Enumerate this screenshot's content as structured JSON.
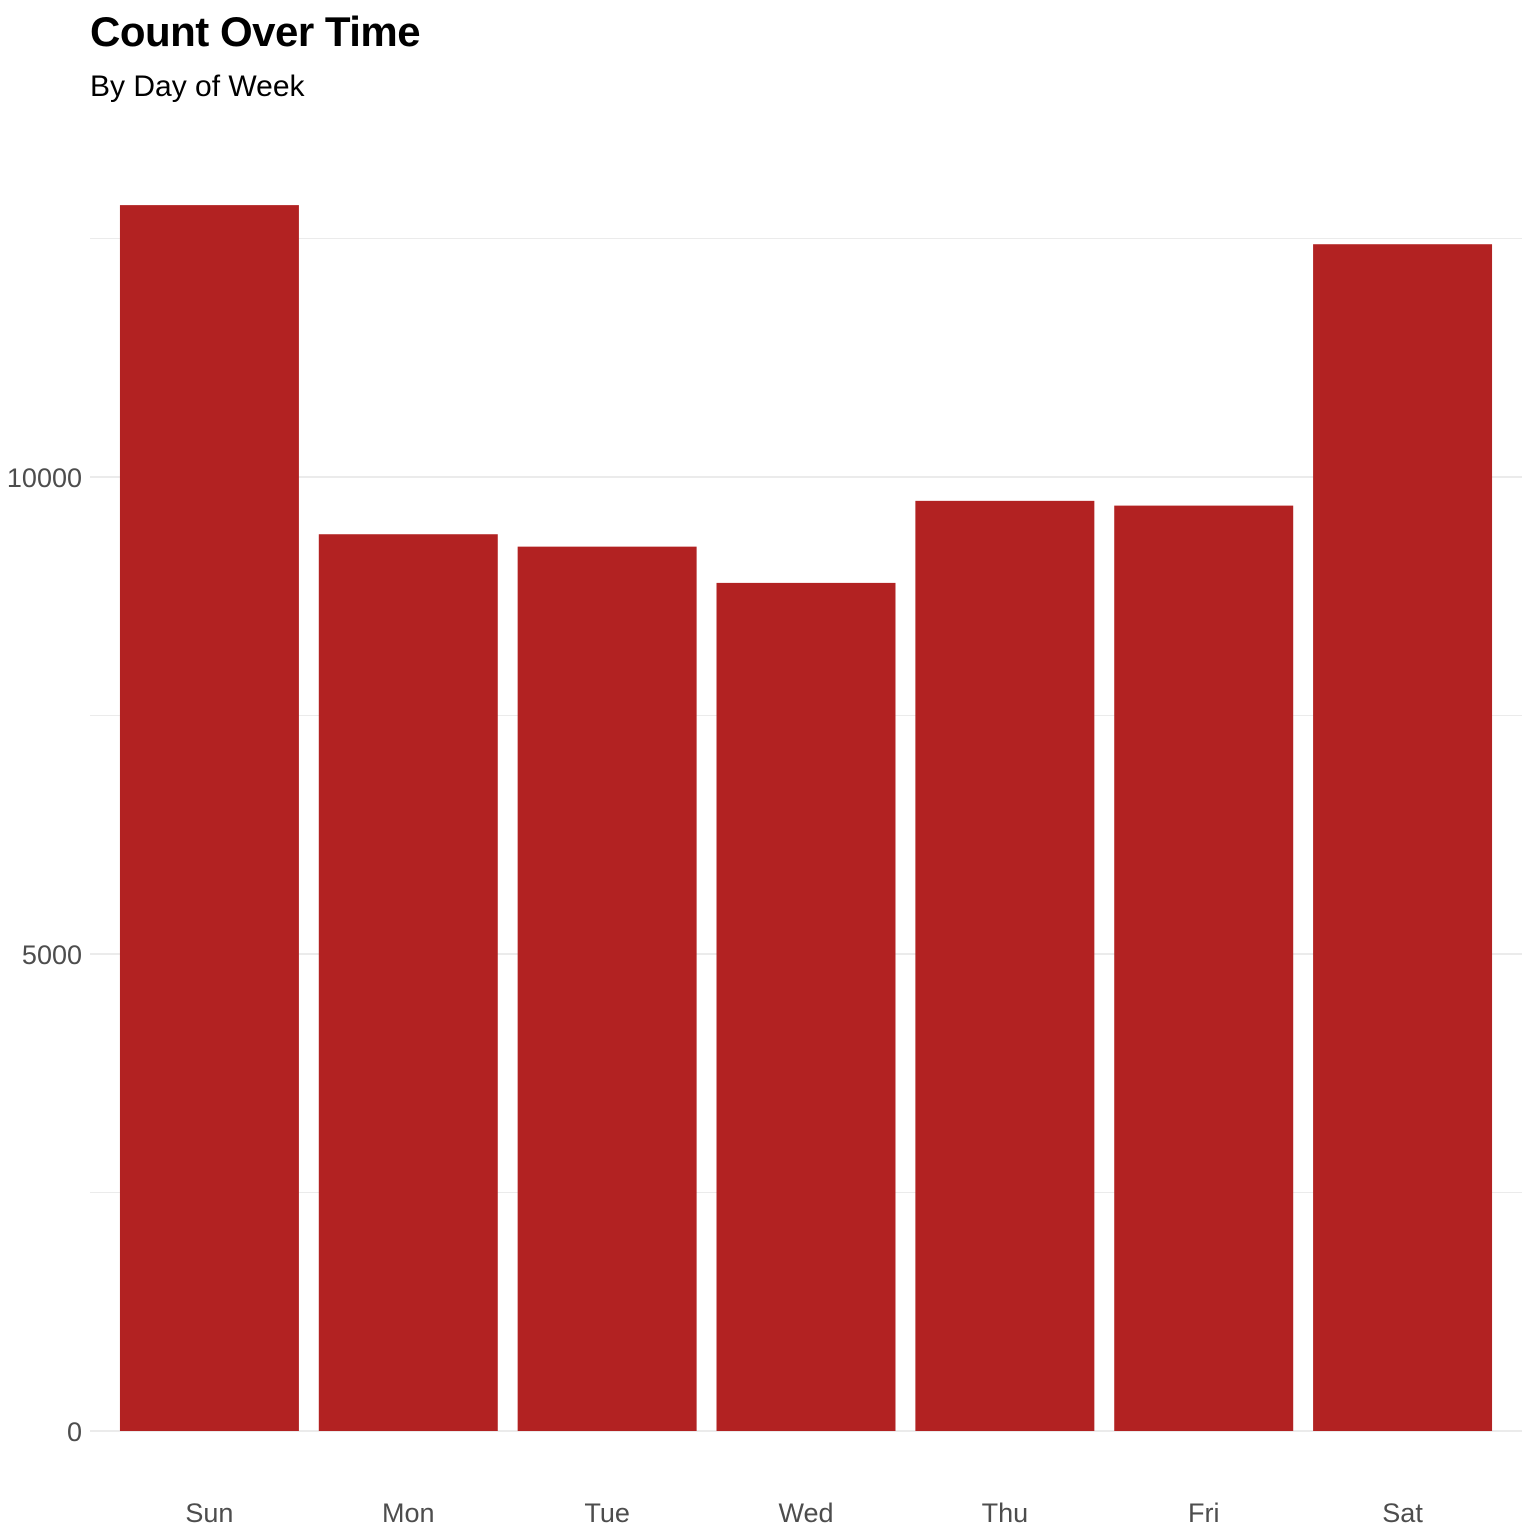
{
  "chart_data": {
    "type": "bar",
    "title": "Count Over Time",
    "subtitle": "By Day of Week",
    "xlabel": "",
    "ylabel": "",
    "categories": [
      "Sun",
      "Mon",
      "Tue",
      "Wed",
      "Thu",
      "Fri",
      "Sat"
    ],
    "values": [
      12850,
      9400,
      9270,
      8890,
      9750,
      9700,
      12440
    ],
    "ylim": [
      0,
      13380
    ],
    "yticks": [
      0,
      5000,
      10000
    ],
    "ytick_labels": [
      "0",
      "5000",
      "10000"
    ],
    "grid": true,
    "legend": "none",
    "colors": {
      "bar": "#B22222",
      "grid": "#ebebeb",
      "tick_text": "#4d4d4d"
    }
  }
}
